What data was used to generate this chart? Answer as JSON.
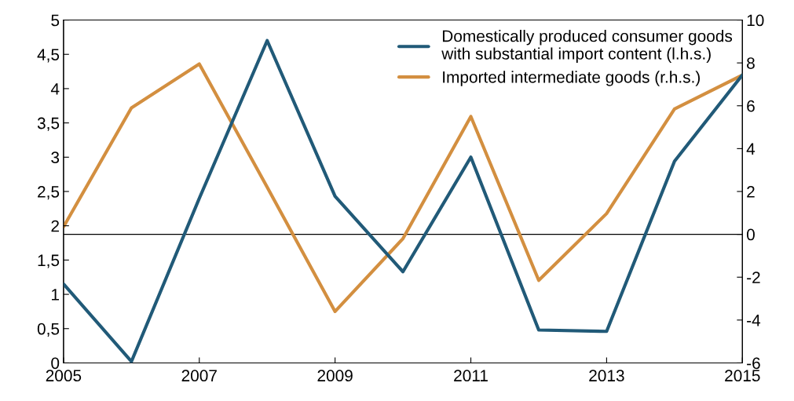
{
  "chart_data": {
    "type": "line",
    "x": [
      2005,
      2006,
      2007,
      2008,
      2009,
      2010,
      2011,
      2012,
      2013,
      2014,
      2015
    ],
    "series": [
      {
        "name": "Domestically produced consumer goods\nwith substantial import content (l.h.s.)",
        "color": "#215a78",
        "values": [
          1.15,
          0.02,
          2.4,
          4.7,
          2.43,
          1.33,
          3.0,
          0.48,
          0.46,
          2.94,
          4.2
        ]
      },
      {
        "name": "Imported intermediate goods (r.h.s.)",
        "color": "#d38f40",
        "axis": "y2",
        "values": [
          0.35,
          5.9,
          7.95,
          2.2,
          -3.6,
          -0.2,
          5.5,
          -2.15,
          0.97,
          5.85,
          7.43
        ]
      }
    ],
    "xlim": [
      2005,
      2015
    ],
    "xticks": [
      2005,
      2007,
      2009,
      2011,
      2013,
      2015
    ],
    "ylim": [
      0,
      5
    ],
    "yticks": [
      0,
      {
        "value": 0.5,
        "label": "0,5"
      },
      1,
      {
        "value": 1.5,
        "label": "1,5"
      },
      2,
      {
        "value": 2.5,
        "label": "2,5"
      },
      3,
      {
        "value": 3.5,
        "label": "3,5"
      },
      4,
      {
        "value": 4.5,
        "label": "4,5"
      },
      5
    ],
    "y2lim": [
      -6,
      10
    ],
    "y2ticks": [
      -6,
      -4,
      -2,
      0,
      2,
      4,
      6,
      8,
      10
    ],
    "ref_lines": [
      {
        "axis": "y2",
        "value": 0,
        "color": "#000000"
      }
    ],
    "grid": false,
    "legend": "top right",
    "marker": "none",
    "line_style": "solid"
  }
}
